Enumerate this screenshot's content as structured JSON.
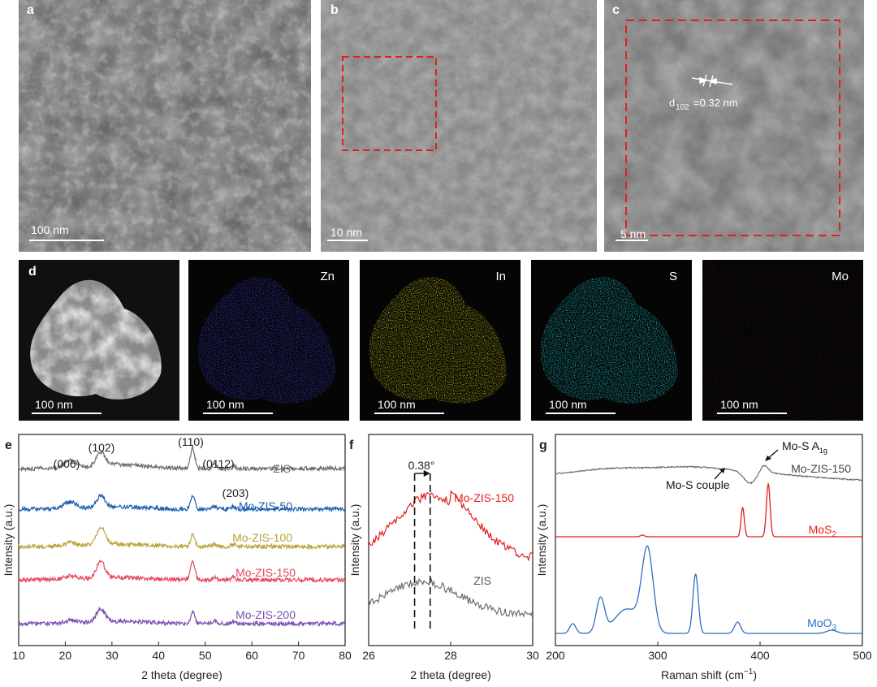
{
  "panels": {
    "a": {
      "label": "a",
      "scale": "100 nm"
    },
    "b": {
      "label": "b",
      "scale": "10 nm"
    },
    "c": {
      "label": "c",
      "scale": "5 nm",
      "d_sub": "102",
      "d_value": "=0.32 nm",
      "d_prefix": "d"
    },
    "d": {
      "label": "d",
      "scale": "100 nm"
    },
    "maps": [
      {
        "element": "Zn",
        "scale": "100 nm",
        "color": "#3c3ccf"
      },
      {
        "element": "In",
        "scale": "100 nm",
        "color": "#d8d21e"
      },
      {
        "element": "S",
        "scale": "100 nm",
        "color": "#22c8d0"
      },
      {
        "element": "Mo",
        "scale": "100 nm",
        "color": "#e0202a"
      }
    ]
  },
  "chart_data": [
    {
      "panel": "e",
      "type": "line",
      "xlabel": "2 theta (degree)",
      "ylabel": "Intensity (a.u.)",
      "xlim": [
        10,
        80
      ],
      "xticks": [
        "10",
        "20",
        "30",
        "40",
        "50",
        "60",
        "70",
        "80"
      ],
      "peak_labels": [
        "(006)",
        "(102)",
        "(110)",
        "(0112)",
        "(203)"
      ],
      "series": [
        {
          "name": "ZIS",
          "color": "#6e6e6e"
        },
        {
          "name": "Mo-ZIS-50",
          "color": "#1f5fb0"
        },
        {
          "name": "Mo-ZIS-100",
          "color": "#b9a23a"
        },
        {
          "name": "Mo-ZIS-150",
          "color": "#e8465a"
        },
        {
          "name": "Mo-ZIS-200",
          "color": "#7a4fb0"
        }
      ],
      "peaks_2theta": [
        21.0,
        27.6,
        47.3,
        52.0,
        56.0
      ]
    },
    {
      "panel": "f",
      "type": "line",
      "xlabel": "2 theta (degree)",
      "ylabel": "Intensity (a.u.)",
      "xlim": [
        26,
        30
      ],
      "xticks": [
        "26",
        "28",
        "30"
      ],
      "shift_label": "0.38°",
      "shift_lines": [
        27.12,
        27.5
      ],
      "series": [
        {
          "name": "Mo-ZIS-150",
          "color": "#e32020"
        },
        {
          "name": "ZIS",
          "color": "#6e6e6e"
        }
      ]
    },
    {
      "panel": "g",
      "type": "line",
      "xlabel_main": "Raman shift (cm",
      "xlabel_sup": "−1",
      "xlabel_end": ")",
      "ylabel": "Intensity (a.u.)",
      "xlim": [
        200,
        500
      ],
      "xticks": [
        "200",
        "300",
        "400",
        "500"
      ],
      "annotations": {
        "a1g_main": "Mo-S A",
        "a1g_sub": "1g",
        "couple": "Mo-S couple"
      },
      "series": [
        {
          "name": "Mo-ZIS-150",
          "color": "#6e6e6e"
        },
        {
          "name_main": "MoS",
          "name_sub": "2",
          "color": "#e32020",
          "peaks": [
            383,
            408
          ]
        },
        {
          "name_main": "MoO",
          "name_sub": "3",
          "color": "#2a6fbf",
          "peaks": [
            217,
            244,
            290,
            337,
            378
          ]
        }
      ]
    }
  ]
}
